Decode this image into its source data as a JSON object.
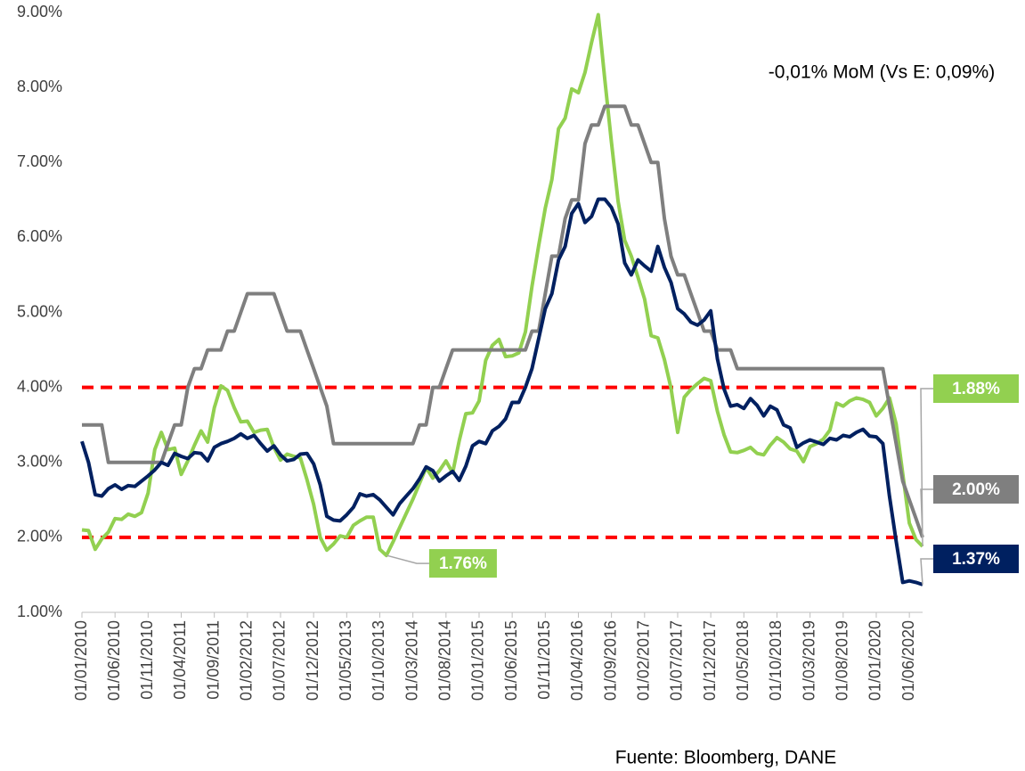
{
  "chart_data": {
    "type": "line",
    "annotation": "-0,01% MoM (Vs E: 0,09%)",
    "source": "Fuente: Bloomberg, DANE",
    "categories": [
      "01/01/2010",
      null,
      null,
      null,
      null,
      "01/06/2010",
      null,
      null,
      null,
      null,
      "01/11/2010",
      null,
      null,
      null,
      null,
      "01/04/2011",
      null,
      null,
      null,
      null,
      "01/09/2011",
      null,
      null,
      null,
      null,
      "01/02/2012",
      null,
      null,
      null,
      null,
      "01/07/2012",
      null,
      null,
      null,
      null,
      "01/12/2012",
      null,
      null,
      null,
      null,
      "01/05/2013",
      null,
      null,
      null,
      null,
      "01/10/2013",
      null,
      null,
      null,
      null,
      "01/03/2014",
      null,
      null,
      null,
      null,
      "01/08/2014",
      null,
      null,
      null,
      null,
      "01/01/2015",
      null,
      null,
      null,
      null,
      "01/06/2015",
      null,
      null,
      null,
      null,
      "01/11/2015",
      null,
      null,
      null,
      null,
      "01/04/2016",
      null,
      null,
      null,
      null,
      "01/09/2016",
      null,
      null,
      null,
      null,
      "01/02/2017",
      null,
      null,
      null,
      null,
      "01/07/2017",
      null,
      null,
      null,
      null,
      "01/12/2017",
      null,
      null,
      null,
      null,
      "01/05/2018",
      null,
      null,
      null,
      null,
      "01/10/2018",
      null,
      null,
      null,
      null,
      "01/03/2019",
      null,
      null,
      null,
      null,
      "01/08/2019",
      null,
      null,
      null,
      null,
      "01/01/2020",
      null,
      null,
      null,
      null,
      "01/06/2020",
      null,
      null
    ],
    "series": [
      {
        "color": "#92d050",
        "values": [
          2.1,
          2.09,
          1.84,
          1.98,
          2.07,
          2.25,
          2.24,
          2.31,
          2.28,
          2.33,
          2.59,
          3.17,
          3.4,
          3.17,
          3.19,
          2.84,
          3.02,
          3.23,
          3.42,
          3.27,
          3.73,
          4.02,
          3.96,
          3.73,
          3.54,
          3.55,
          3.4,
          3.43,
          3.44,
          3.2,
          3.03,
          3.11,
          3.08,
          3.06,
          2.77,
          2.44,
          2.0,
          1.83,
          1.91,
          2.02,
          2.0,
          2.16,
          2.22,
          2.27,
          2.27,
          1.84,
          1.76,
          1.94,
          2.13,
          2.32,
          2.51,
          2.72,
          2.93,
          2.79,
          2.89,
          3.02,
          2.86,
          3.29,
          3.65,
          3.66,
          3.82,
          4.36,
          4.56,
          4.64,
          4.41,
          4.42,
          4.46,
          4.74,
          5.35,
          5.89,
          6.39,
          6.77,
          7.45,
          7.59,
          7.98,
          7.93,
          8.2,
          8.6,
          8.97,
          8.1,
          7.27,
          6.48,
          5.96,
          5.75,
          5.47,
          5.18,
          4.69,
          4.66,
          4.37,
          3.99,
          3.4,
          3.87,
          3.97,
          4.05,
          4.12,
          4.09,
          3.68,
          3.37,
          3.14,
          3.13,
          3.16,
          3.2,
          3.12,
          3.1,
          3.23,
          3.33,
          3.27,
          3.18,
          3.15,
          3.01,
          3.21,
          3.25,
          3.31,
          3.43,
          3.79,
          3.75,
          3.82,
          3.86,
          3.84,
          3.8,
          3.62,
          3.72,
          3.86,
          3.51,
          2.85,
          2.19,
          1.97,
          1.88
        ],
        "value_labels": [
          null,
          null,
          null,
          null,
          null,
          null,
          null,
          null,
          null,
          null,
          null,
          null,
          null,
          null,
          null,
          null,
          null,
          null,
          null,
          null,
          null,
          null,
          null,
          null,
          null,
          null,
          null,
          null,
          null,
          null,
          null,
          null,
          null,
          null,
          null,
          null,
          null,
          null,
          null,
          null,
          null,
          null,
          null,
          null,
          null,
          null,
          "1.76%",
          null,
          null,
          null,
          null,
          null,
          null,
          null,
          null,
          null,
          null,
          null,
          null,
          null,
          null,
          null,
          null,
          null,
          null,
          null,
          null,
          null,
          null,
          null,
          null,
          null,
          null,
          null,
          null,
          null,
          null,
          null,
          null,
          null,
          null,
          null,
          null,
          null,
          null,
          null,
          null,
          null,
          null,
          null,
          null,
          null,
          null,
          null,
          null,
          null,
          null,
          null,
          null,
          null,
          null,
          null,
          null,
          null,
          null,
          null,
          null,
          null,
          null,
          null,
          null,
          null,
          null,
          null,
          null,
          null,
          null,
          null,
          null,
          null,
          null,
          null,
          null,
          null,
          null,
          null,
          null,
          "1.88%"
        ]
      },
      {
        "color": "#7f7f7f",
        "values": [
          3.5,
          3.5,
          3.5,
          3.5,
          3.0,
          3.0,
          3.0,
          3.0,
          3.0,
          3.0,
          3.0,
          3.0,
          3.0,
          3.25,
          3.5,
          3.5,
          4.0,
          4.25,
          4.25,
          4.5,
          4.5,
          4.5,
          4.75,
          4.75,
          5.0,
          5.25,
          5.25,
          5.25,
          5.25,
          5.25,
          5.0,
          4.75,
          4.75,
          4.75,
          4.5,
          4.25,
          4.0,
          3.75,
          3.25,
          3.25,
          3.25,
          3.25,
          3.25,
          3.25,
          3.25,
          3.25,
          3.25,
          3.25,
          3.25,
          3.25,
          3.25,
          3.5,
          3.5,
          4.0,
          4.0,
          4.25,
          4.5,
          4.5,
          4.5,
          4.5,
          4.5,
          4.5,
          4.5,
          4.5,
          4.5,
          4.5,
          4.5,
          4.5,
          4.75,
          4.75,
          5.25,
          5.75,
          5.75,
          6.25,
          6.5,
          6.5,
          7.25,
          7.5,
          7.5,
          7.75,
          7.75,
          7.75,
          7.75,
          7.5,
          7.5,
          7.25,
          7.0,
          7.0,
          6.25,
          5.75,
          5.5,
          5.5,
          5.25,
          5.0,
          4.75,
          4.75,
          4.5,
          4.5,
          4.5,
          4.25,
          4.25,
          4.25,
          4.25,
          4.25,
          4.25,
          4.25,
          4.25,
          4.25,
          4.25,
          4.25,
          4.25,
          4.25,
          4.25,
          4.25,
          4.25,
          4.25,
          4.25,
          4.25,
          4.25,
          4.25,
          4.25,
          4.25,
          3.75,
          3.25,
          2.75,
          2.5,
          2.25,
          2.0
        ],
        "value_labels": [
          null,
          null,
          null,
          null,
          null,
          null,
          null,
          null,
          null,
          null,
          null,
          null,
          null,
          null,
          null,
          null,
          null,
          null,
          null,
          null,
          null,
          null,
          null,
          null,
          null,
          null,
          null,
          null,
          null,
          null,
          null,
          null,
          null,
          null,
          null,
          null,
          null,
          null,
          null,
          null,
          null,
          null,
          null,
          null,
          null,
          null,
          null,
          null,
          null,
          null,
          null,
          null,
          null,
          null,
          null,
          null,
          null,
          null,
          null,
          null,
          null,
          null,
          null,
          null,
          null,
          null,
          null,
          null,
          null,
          null,
          null,
          null,
          null,
          null,
          null,
          null,
          null,
          null,
          null,
          null,
          null,
          null,
          null,
          null,
          null,
          null,
          null,
          null,
          null,
          null,
          null,
          null,
          null,
          null,
          null,
          null,
          null,
          null,
          null,
          null,
          null,
          null,
          null,
          null,
          null,
          null,
          null,
          null,
          null,
          null,
          null,
          null,
          null,
          null,
          null,
          null,
          null,
          null,
          null,
          null,
          null,
          null,
          null,
          null,
          null,
          null,
          null,
          "2.00%"
        ]
      },
      {
        "color": "#002060",
        "values": [
          3.28,
          3.0,
          2.57,
          2.55,
          2.65,
          2.7,
          2.64,
          2.69,
          2.68,
          2.75,
          2.82,
          2.9,
          3.0,
          2.96,
          3.12,
          3.08,
          3.05,
          3.13,
          3.12,
          3.02,
          3.2,
          3.25,
          3.28,
          3.32,
          3.38,
          3.32,
          3.36,
          3.25,
          3.15,
          3.22,
          3.1,
          3.02,
          3.04,
          3.11,
          3.12,
          2.98,
          2.7,
          2.28,
          2.23,
          2.22,
          2.3,
          2.4,
          2.58,
          2.55,
          2.57,
          2.5,
          2.4,
          2.3,
          2.45,
          2.55,
          2.65,
          2.78,
          2.94,
          2.89,
          2.75,
          2.82,
          2.88,
          2.76,
          2.95,
          3.22,
          3.28,
          3.25,
          3.42,
          3.48,
          3.58,
          3.8,
          3.8,
          4.0,
          4.25,
          4.65,
          5.05,
          5.25,
          5.7,
          5.88,
          6.32,
          6.45,
          6.2,
          6.28,
          6.51,
          6.51,
          6.4,
          6.18,
          5.66,
          5.5,
          5.7,
          5.62,
          5.55,
          5.88,
          5.6,
          5.4,
          5.05,
          4.98,
          4.87,
          4.83,
          4.9,
          5.02,
          4.38,
          3.98,
          3.75,
          3.77,
          3.72,
          3.85,
          3.76,
          3.62,
          3.75,
          3.7,
          3.5,
          3.46,
          3.2,
          3.26,
          3.3,
          3.27,
          3.24,
          3.32,
          3.3,
          3.36,
          3.34,
          3.4,
          3.44,
          3.35,
          3.34,
          3.25,
          2.55,
          1.95,
          1.4,
          1.42,
          1.4,
          1.37
        ],
        "value_labels": [
          null,
          null,
          null,
          null,
          null,
          null,
          null,
          null,
          null,
          null,
          null,
          null,
          null,
          null,
          null,
          null,
          null,
          null,
          null,
          null,
          null,
          null,
          null,
          null,
          null,
          null,
          null,
          null,
          null,
          null,
          null,
          null,
          null,
          null,
          null,
          null,
          null,
          null,
          null,
          null,
          null,
          null,
          null,
          null,
          null,
          null,
          null,
          null,
          null,
          null,
          null,
          null,
          null,
          null,
          null,
          null,
          null,
          null,
          null,
          null,
          null,
          null,
          null,
          null,
          null,
          null,
          null,
          null,
          null,
          null,
          null,
          null,
          null,
          null,
          null,
          null,
          null,
          null,
          null,
          null,
          null,
          null,
          null,
          null,
          null,
          null,
          null,
          null,
          null,
          null,
          null,
          null,
          null,
          null,
          null,
          null,
          null,
          null,
          null,
          null,
          null,
          null,
          null,
          null,
          null,
          null,
          null,
          null,
          null,
          null,
          null,
          null,
          null,
          null,
          null,
          null,
          null,
          null,
          null,
          null,
          null,
          null,
          null,
          null,
          null,
          null,
          null,
          "1.37%"
        ]
      }
    ],
    "reference_lines": {
      "values": [
        4,
        2
      ],
      "color": "#ff0000"
    },
    "ylim": [
      1,
      9
    ],
    "yticks": [
      {
        "value": 1,
        "label": "1.00%"
      },
      {
        "value": 2,
        "label": "2.00%"
      },
      {
        "value": 3,
        "label": "3.00%"
      },
      {
        "value": 4,
        "label": "4.00%"
      },
      {
        "value": 5,
        "label": "5.00%"
      },
      {
        "value": 6,
        "label": "6.00%"
      },
      {
        "value": 7,
        "label": "7.00%"
      },
      {
        "value": 8,
        "label": "8.00%"
      },
      {
        "value": 9,
        "label": "9.00%"
      }
    ],
    "grid": false
  }
}
